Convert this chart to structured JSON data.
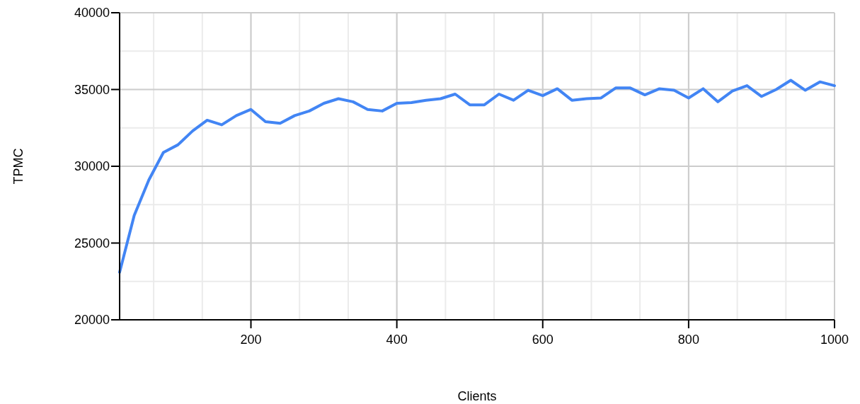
{
  "chart_data": {
    "type": "line",
    "xlabel": "Clients",
    "ylabel": "TPMC",
    "x": [
      20,
      40,
      60,
      80,
      100,
      120,
      140,
      160,
      180,
      200,
      220,
      240,
      260,
      280,
      300,
      320,
      340,
      360,
      380,
      400,
      420,
      440,
      460,
      480,
      500,
      520,
      540,
      560,
      580,
      600,
      620,
      640,
      660,
      680,
      700,
      720,
      740,
      760,
      780,
      800,
      820,
      840,
      860,
      880,
      900,
      920,
      940,
      960,
      980,
      1000
    ],
    "series": [
      {
        "color": "#4285f4",
        "values": [
          23100,
          26800,
          29100,
          30900,
          31400,
          32300,
          33000,
          32700,
          33300,
          33700,
          32900,
          32800,
          33300,
          33600,
          34100,
          34400,
          34200,
          33700,
          33600,
          34100,
          34150,
          34300,
          34400,
          34700,
          34000,
          34000,
          34700,
          34300,
          34950,
          34600,
          35050,
          34300,
          34400,
          34450,
          35100,
          35100,
          34650,
          35050,
          34950,
          34450,
          35050,
          34200,
          34900,
          35250,
          34550,
          35000,
          35600,
          34950,
          35500,
          35250
        ]
      }
    ],
    "xlim": [
      20,
      1000
    ],
    "xticks": [
      200,
      400,
      600,
      800,
      1000
    ],
    "ylim": [
      20000,
      40000
    ],
    "yticks": [
      20000,
      25000,
      30000,
      35000,
      40000
    ],
    "grid": true,
    "marker": "none",
    "line_style": "solid"
  }
}
